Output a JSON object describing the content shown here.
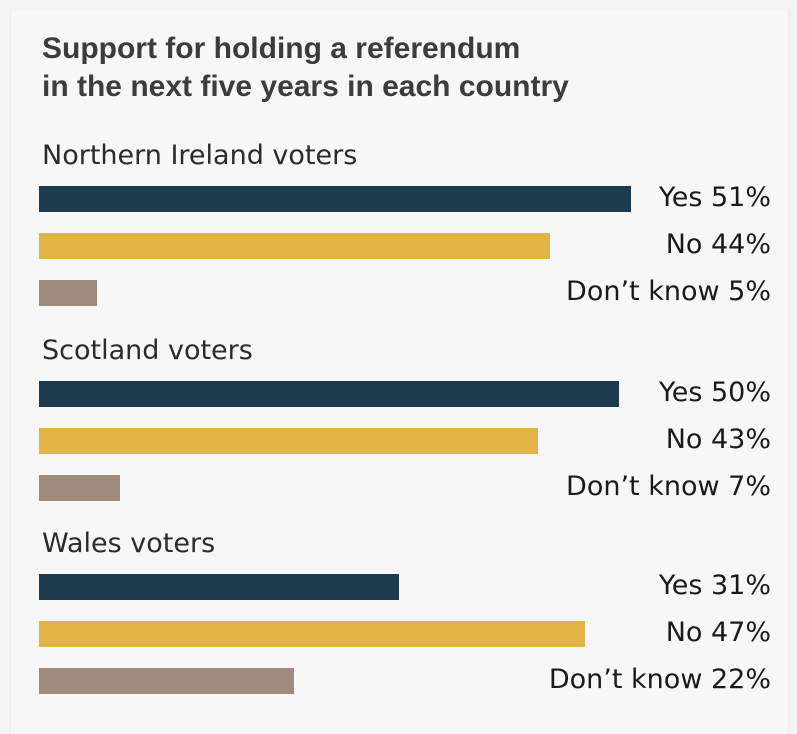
{
  "chart_data": {
    "type": "bar",
    "orientation": "horizontal",
    "title": "Support for holding a referendum in the next five years in each country",
    "title_lines": [
      "Support for holding a referendum",
      "in the next five years in each country"
    ],
    "unit": "%",
    "xlim": [
      0,
      51
    ],
    "grid": false,
    "legend": "none",
    "colors": {
      "Yes": "#1d3a4f",
      "No": "#e2b444",
      "Don't know": "#9f8b7d"
    },
    "groups": [
      {
        "name": "Northern Ireland voters",
        "bars": [
          {
            "category": "Yes",
            "value": 51,
            "label": "Yes 51%"
          },
          {
            "category": "No",
            "value": 44,
            "label": "No 44%"
          },
          {
            "category": "Don't know",
            "value": 5,
            "label": "Don’t know 5%"
          }
        ]
      },
      {
        "name": "Scotland voters",
        "bars": [
          {
            "category": "Yes",
            "value": 50,
            "label": "Yes 50%"
          },
          {
            "category": "No",
            "value": 43,
            "label": "No 43%"
          },
          {
            "category": "Don't know",
            "value": 7,
            "label": "Don’t know 7%"
          }
        ]
      },
      {
        "name": "Wales voters",
        "bars": [
          {
            "category": "Yes",
            "value": 31,
            "label": "Yes 31%"
          },
          {
            "category": "No",
            "value": 47,
            "label": "No 47%"
          },
          {
            "category": "Don't know",
            "value": 22,
            "label": "Don’t know 22%"
          }
        ]
      }
    ]
  }
}
